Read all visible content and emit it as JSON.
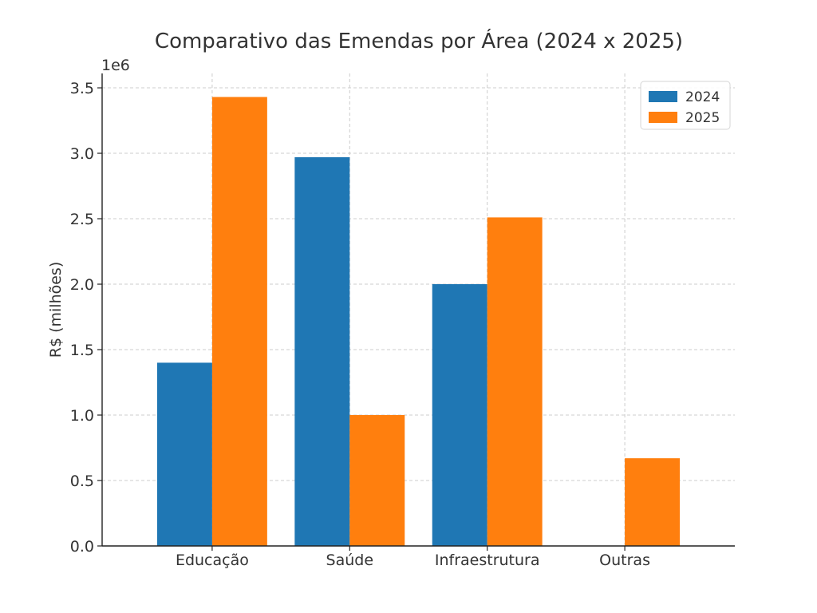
{
  "chart_data": {
    "type": "bar",
    "title": "Comparativo das Emendas por Área (2024 x 2025)",
    "ylabel": "R$ (milhões)",
    "xlabel": "",
    "offset_text": "1e6",
    "categories": [
      "Educação",
      "Saúde",
      "Infraestrutura",
      "Outras"
    ],
    "series": [
      {
        "name": "2024",
        "color": "#1f77b4",
        "values": [
          1400000,
          2970000,
          2000000,
          0
        ]
      },
      {
        "name": "2025",
        "color": "#ff7f0e",
        "values": [
          3430000,
          1000000,
          2510000,
          670000
        ]
      }
    ],
    "ylim": [
      0,
      3610000
    ],
    "yticks": [
      0,
      500000,
      1000000,
      1500000,
      2000000,
      2500000,
      3000000,
      3500000
    ],
    "ytick_labels": [
      "0.0",
      "0.5",
      "1.0",
      "1.5",
      "2.0",
      "2.5",
      "3.0",
      "3.5"
    ],
    "grid": true,
    "legend_position": "top-right"
  }
}
